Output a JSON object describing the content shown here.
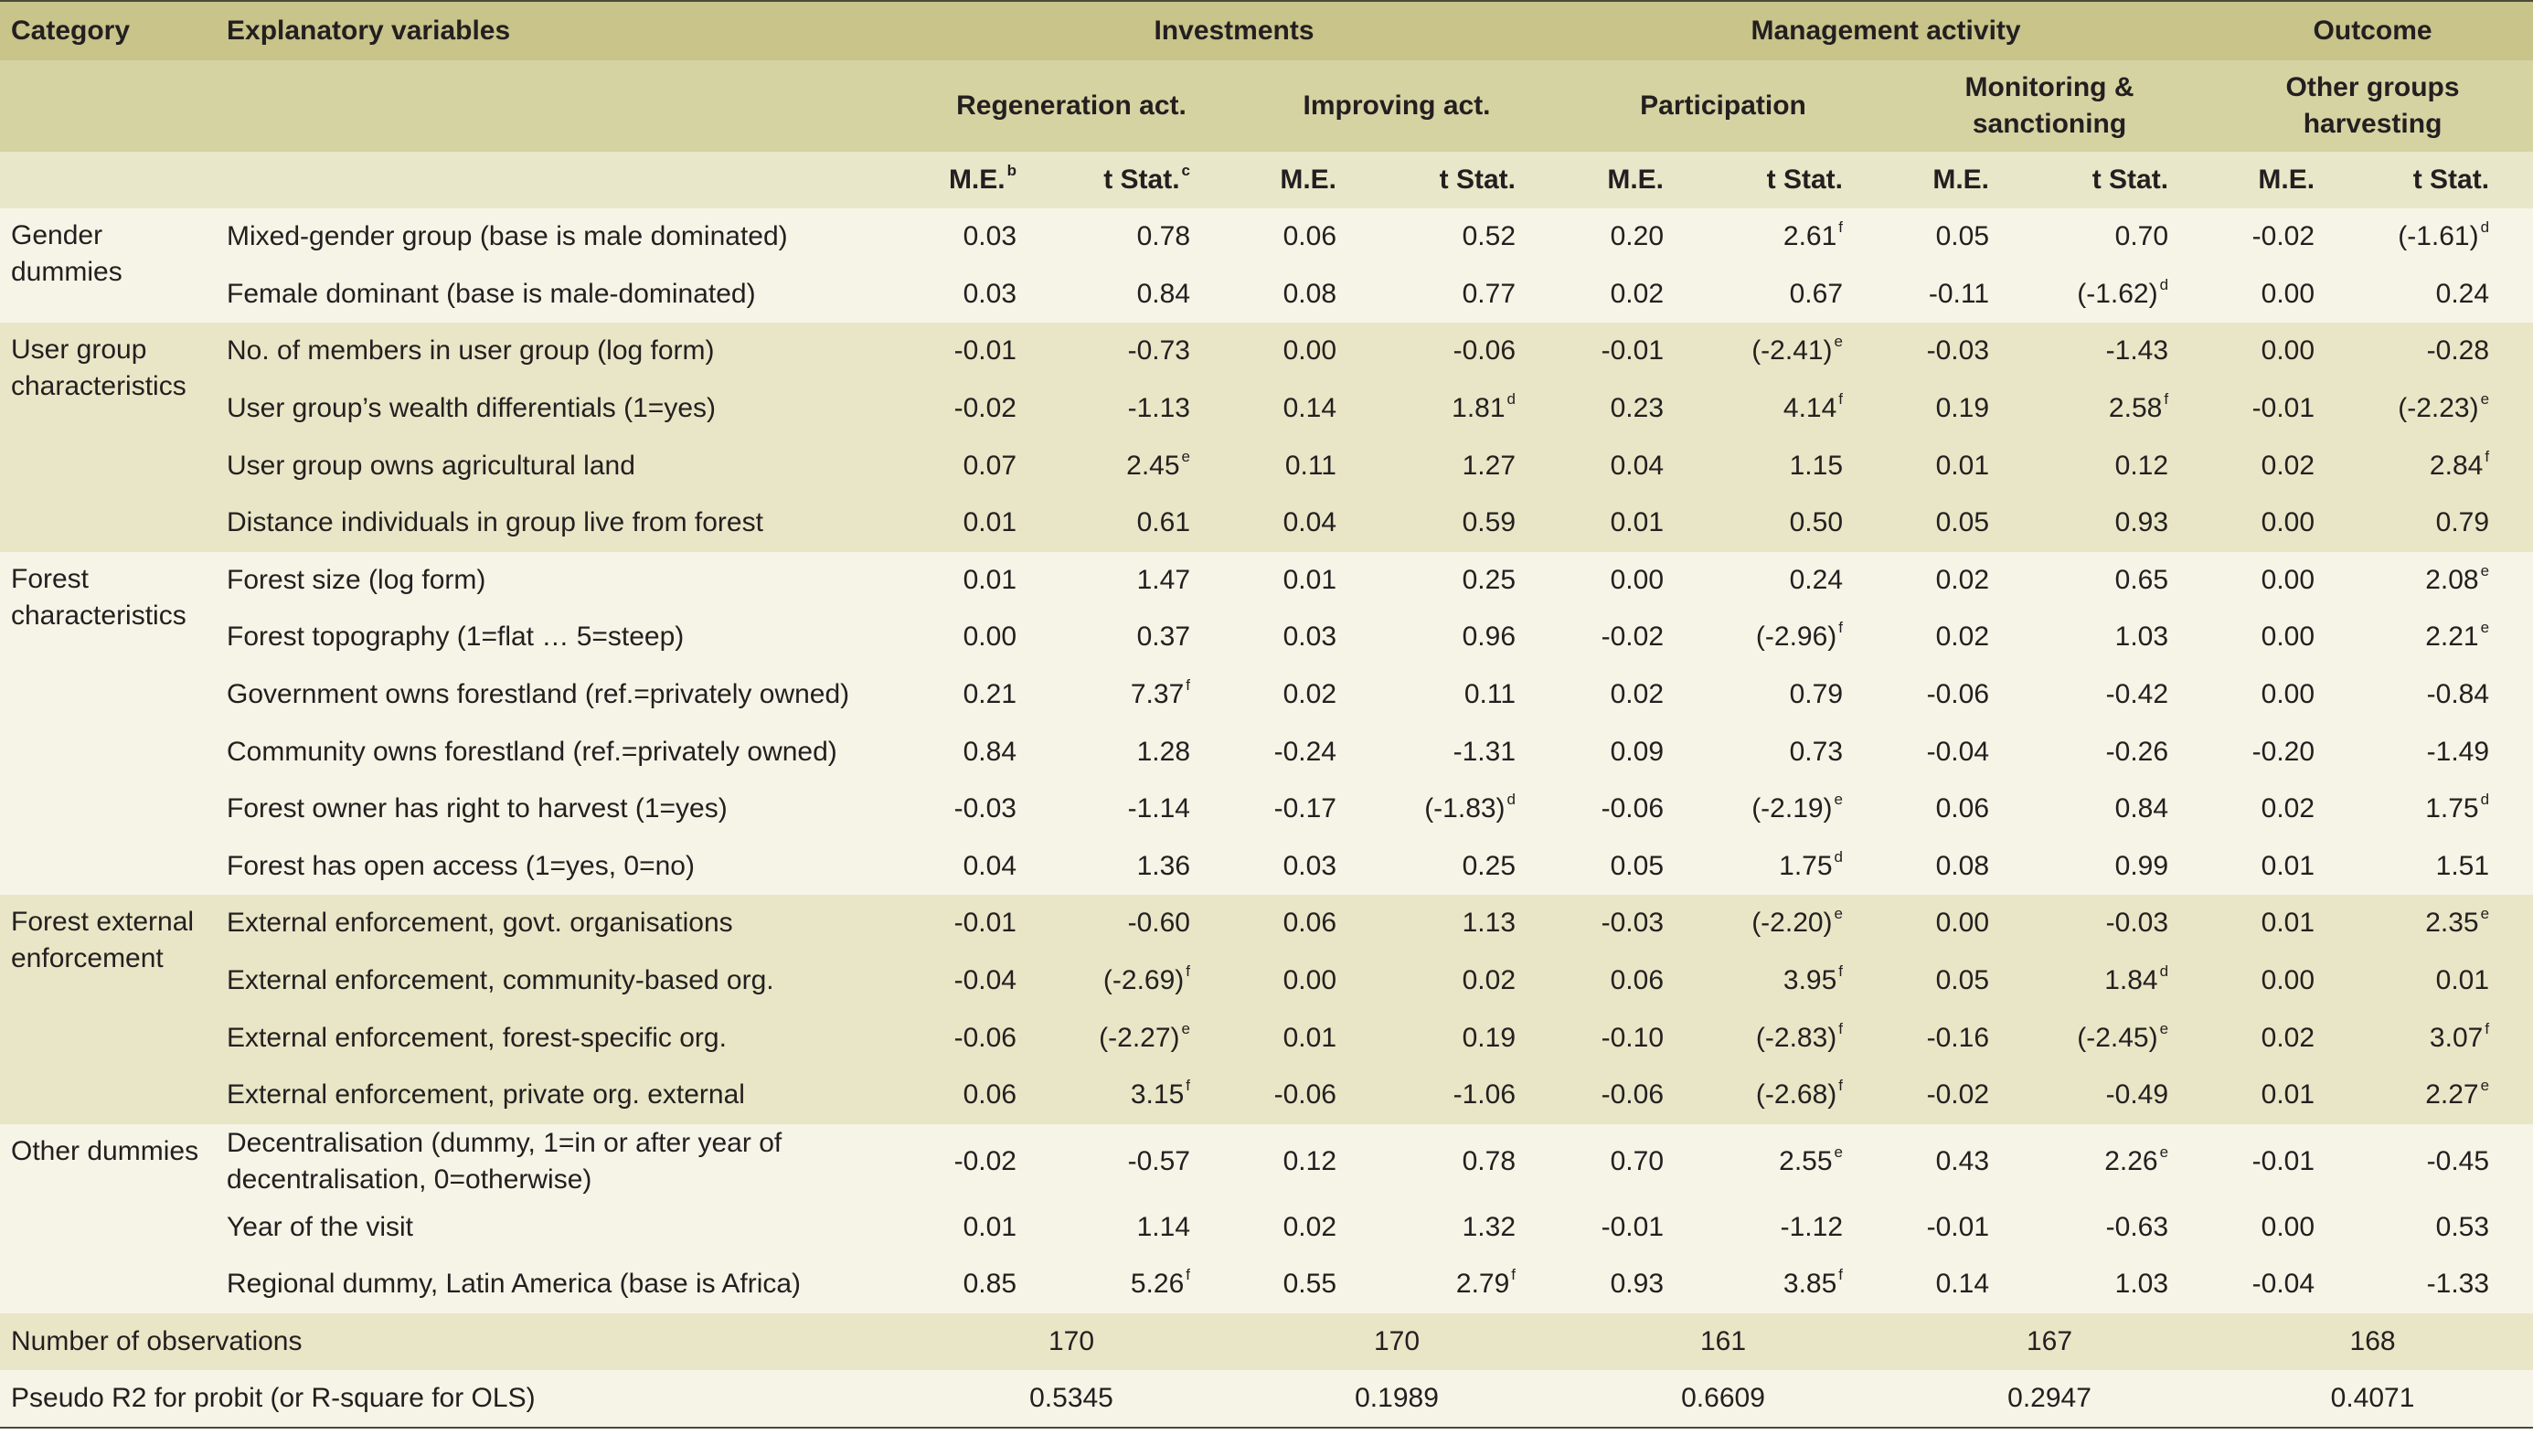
{
  "header": {
    "category": "Category",
    "explanatory": "Explanatory variables",
    "groups": [
      "Investments",
      "Management activity",
      "Outcome"
    ],
    "models": [
      "Regeneration act.",
      "Improving act.",
      "Participation",
      "Monitoring & sanctioning",
      "Other groups harvesting"
    ],
    "me_label": "M.E.",
    "me_sup": "b",
    "t_label": "t Stat.",
    "t_sup": "c",
    "t_label_plain": "t Stat."
  },
  "groups": [
    {
      "category": "Gender dummies",
      "rows": [
        {
          "label": "Mixed-gender group (base is male dominated)",
          "cells": [
            [
              "0.03",
              ""
            ],
            [
              "0.78",
              ""
            ],
            [
              "0.06",
              ""
            ],
            [
              "0.52",
              ""
            ],
            [
              "0.20",
              ""
            ],
            [
              "2.61",
              "f"
            ],
            [
              "0.05",
              ""
            ],
            [
              "0.70",
              ""
            ],
            [
              "-0.02",
              ""
            ],
            [
              "(-1.61)",
              "d"
            ]
          ]
        },
        {
          "label": "Female dominant (base is male-dominated)",
          "cells": [
            [
              "0.03",
              ""
            ],
            [
              "0.84",
              ""
            ],
            [
              "0.08",
              ""
            ],
            [
              "0.77",
              ""
            ],
            [
              "0.02",
              ""
            ],
            [
              "0.67",
              ""
            ],
            [
              "-0.11",
              ""
            ],
            [
              "(-1.62)",
              "d"
            ],
            [
              "0.00",
              ""
            ],
            [
              "0.24",
              ""
            ]
          ]
        }
      ]
    },
    {
      "category": "User group characteristics",
      "rows": [
        {
          "label": "No. of members in user group (log form)",
          "cells": [
            [
              "-0.01",
              ""
            ],
            [
              "-0.73",
              ""
            ],
            [
              "0.00",
              ""
            ],
            [
              "-0.06",
              ""
            ],
            [
              "-0.01",
              ""
            ],
            [
              "(-2.41)",
              "e"
            ],
            [
              "-0.03",
              ""
            ],
            [
              "-1.43",
              ""
            ],
            [
              "0.00",
              ""
            ],
            [
              "-0.28",
              ""
            ]
          ]
        },
        {
          "label": "User group’s wealth differentials (1=yes)",
          "cells": [
            [
              "-0.02",
              ""
            ],
            [
              "-1.13",
              ""
            ],
            [
              "0.14",
              ""
            ],
            [
              "1.81",
              "d"
            ],
            [
              "0.23",
              ""
            ],
            [
              "4.14",
              "f"
            ],
            [
              "0.19",
              ""
            ],
            [
              "2.58",
              "f"
            ],
            [
              "-0.01",
              ""
            ],
            [
              "(-2.23)",
              "e"
            ]
          ]
        },
        {
          "label": "User group owns agricultural land",
          "cells": [
            [
              "0.07",
              ""
            ],
            [
              "2.45",
              "e"
            ],
            [
              "0.11",
              ""
            ],
            [
              "1.27",
              ""
            ],
            [
              "0.04",
              ""
            ],
            [
              "1.15",
              ""
            ],
            [
              "0.01",
              ""
            ],
            [
              "0.12",
              ""
            ],
            [
              "0.02",
              ""
            ],
            [
              "2.84",
              "f"
            ]
          ]
        },
        {
          "label": "Distance individuals in group live from forest",
          "cells": [
            [
              "0.01",
              ""
            ],
            [
              "0.61",
              ""
            ],
            [
              "0.04",
              ""
            ],
            [
              "0.59",
              ""
            ],
            [
              "0.01",
              ""
            ],
            [
              "0.50",
              ""
            ],
            [
              "0.05",
              ""
            ],
            [
              "0.93",
              ""
            ],
            [
              "0.00",
              ""
            ],
            [
              "0.79",
              ""
            ]
          ]
        }
      ]
    },
    {
      "category": "Forest characteristics",
      "rows": [
        {
          "label": "Forest size (log form)",
          "cells": [
            [
              "0.01",
              ""
            ],
            [
              "1.47",
              ""
            ],
            [
              "0.01",
              ""
            ],
            [
              "0.25",
              ""
            ],
            [
              "0.00",
              ""
            ],
            [
              "0.24",
              ""
            ],
            [
              "0.02",
              ""
            ],
            [
              "0.65",
              ""
            ],
            [
              "0.00",
              ""
            ],
            [
              "2.08",
              "e"
            ]
          ]
        },
        {
          "label": "Forest topography (1=flat … 5=steep)",
          "cells": [
            [
              "0.00",
              ""
            ],
            [
              "0.37",
              ""
            ],
            [
              "0.03",
              ""
            ],
            [
              "0.96",
              ""
            ],
            [
              "-0.02",
              ""
            ],
            [
              "(-2.96)",
              "f"
            ],
            [
              "0.02",
              ""
            ],
            [
              "1.03",
              ""
            ],
            [
              "0.00",
              ""
            ],
            [
              "2.21",
              "e"
            ]
          ]
        },
        {
          "label": "Government owns forestland (ref.=privately owned)",
          "cells": [
            [
              "0.21",
              ""
            ],
            [
              "7.37",
              "f"
            ],
            [
              "0.02",
              ""
            ],
            [
              "0.11",
              ""
            ],
            [
              "0.02",
              ""
            ],
            [
              "0.79",
              ""
            ],
            [
              "-0.06",
              ""
            ],
            [
              "-0.42",
              ""
            ],
            [
              "0.00",
              ""
            ],
            [
              "-0.84",
              ""
            ]
          ]
        },
        {
          "label": "Community owns forestland (ref.=privately owned)",
          "cells": [
            [
              "0.84",
              ""
            ],
            [
              "1.28",
              ""
            ],
            [
              "-0.24",
              ""
            ],
            [
              "-1.31",
              ""
            ],
            [
              "0.09",
              ""
            ],
            [
              "0.73",
              ""
            ],
            [
              "-0.04",
              ""
            ],
            [
              "-0.26",
              ""
            ],
            [
              "-0.20",
              ""
            ],
            [
              "-1.49",
              ""
            ]
          ]
        },
        {
          "label": "Forest owner has right to harvest (1=yes)",
          "cells": [
            [
              "-0.03",
              ""
            ],
            [
              "-1.14",
              ""
            ],
            [
              "-0.17",
              ""
            ],
            [
              "(-1.83)",
              "d"
            ],
            [
              "-0.06",
              ""
            ],
            [
              "(-2.19)",
              "e"
            ],
            [
              "0.06",
              ""
            ],
            [
              "0.84",
              ""
            ],
            [
              "0.02",
              ""
            ],
            [
              "1.75",
              "d"
            ]
          ]
        },
        {
          "label": "Forest has open access (1=yes, 0=no)",
          "cells": [
            [
              "0.04",
              ""
            ],
            [
              "1.36",
              ""
            ],
            [
              "0.03",
              ""
            ],
            [
              "0.25",
              ""
            ],
            [
              "0.05",
              ""
            ],
            [
              "1.75",
              "d"
            ],
            [
              "0.08",
              ""
            ],
            [
              "0.99",
              ""
            ],
            [
              "0.01",
              ""
            ],
            [
              "1.51",
              ""
            ]
          ]
        }
      ]
    },
    {
      "category": "Forest external enforcement",
      "rows": [
        {
          "label": "External enforcement, govt. organisations",
          "cells": [
            [
              "-0.01",
              ""
            ],
            [
              "-0.60",
              ""
            ],
            [
              "0.06",
              ""
            ],
            [
              "1.13",
              ""
            ],
            [
              "-0.03",
              ""
            ],
            [
              "(-2.20)",
              "e"
            ],
            [
              "0.00",
              ""
            ],
            [
              "-0.03",
              ""
            ],
            [
              "0.01",
              ""
            ],
            [
              "2.35",
              "e"
            ]
          ]
        },
        {
          "label": "External enforcement, community-based org.",
          "cells": [
            [
              "-0.04",
              ""
            ],
            [
              "(-2.69)",
              "f"
            ],
            [
              "0.00",
              ""
            ],
            [
              "0.02",
              ""
            ],
            [
              "0.06",
              ""
            ],
            [
              "3.95",
              "f"
            ],
            [
              "0.05",
              ""
            ],
            [
              "1.84",
              "d"
            ],
            [
              "0.00",
              ""
            ],
            [
              "0.01",
              ""
            ]
          ]
        },
        {
          "label": "External enforcement, forest-specific org.",
          "cells": [
            [
              "-0.06",
              ""
            ],
            [
              "(-2.27)",
              "e"
            ],
            [
              "0.01",
              ""
            ],
            [
              "0.19",
              ""
            ],
            [
              "-0.10",
              ""
            ],
            [
              "(-2.83)",
              "f"
            ],
            [
              "-0.16",
              ""
            ],
            [
              "(-2.45)",
              "e"
            ],
            [
              "0.02",
              ""
            ],
            [
              "3.07",
              "f"
            ]
          ]
        },
        {
          "label": "External enforcement, private org. external",
          "cells": [
            [
              "0.06",
              ""
            ],
            [
              "3.15",
              "f"
            ],
            [
              "-0.06",
              ""
            ],
            [
              "-1.06",
              ""
            ],
            [
              "-0.06",
              ""
            ],
            [
              "(-2.68)",
              "f"
            ],
            [
              "-0.02",
              ""
            ],
            [
              "-0.49",
              ""
            ],
            [
              "0.01",
              ""
            ],
            [
              "2.27",
              "e"
            ]
          ]
        }
      ]
    },
    {
      "category": "Other dummies",
      "rows": [
        {
          "label": "Decentralisation (dummy, 1=in or after year of decentralisation, 0=otherwise)",
          "cells": [
            [
              "-0.02",
              ""
            ],
            [
              "-0.57",
              ""
            ],
            [
              "0.12",
              ""
            ],
            [
              "0.78",
              ""
            ],
            [
              "0.70",
              ""
            ],
            [
              "2.55",
              "e"
            ],
            [
              "0.43",
              ""
            ],
            [
              "2.26",
              "e"
            ],
            [
              "-0.01",
              ""
            ],
            [
              "-0.45",
              ""
            ]
          ]
        },
        {
          "label": "Year of the visit",
          "cells": [
            [
              "0.01",
              ""
            ],
            [
              "1.14",
              ""
            ],
            [
              "0.02",
              ""
            ],
            [
              "1.32",
              ""
            ],
            [
              "-0.01",
              ""
            ],
            [
              "-1.12",
              ""
            ],
            [
              "-0.01",
              ""
            ],
            [
              "-0.63",
              ""
            ],
            [
              "0.00",
              ""
            ],
            [
              "0.53",
              ""
            ]
          ]
        },
        {
          "label": "Regional dummy, Latin America (base is Africa)",
          "cells": [
            [
              "0.85",
              ""
            ],
            [
              "5.26",
              "f"
            ],
            [
              "0.55",
              ""
            ],
            [
              "2.79",
              "f"
            ],
            [
              "0.93",
              ""
            ],
            [
              "3.85",
              "f"
            ],
            [
              "0.14",
              ""
            ],
            [
              "1.03",
              ""
            ],
            [
              "-0.04",
              ""
            ],
            [
              "-1.33",
              ""
            ]
          ]
        }
      ]
    }
  ],
  "footer": {
    "obs_label": "Number of observations",
    "obs": [
      "170",
      "170",
      "161",
      "167",
      "168"
    ],
    "r2_label": "Pseudo R2 for probit (or R-square for OLS)",
    "r2": [
      "0.5345",
      "0.1989",
      "0.6609",
      "0.2947",
      "0.4071"
    ]
  },
  "colors": {
    "header_dark": "#c8c48a",
    "header_mid": "#d6d3a3",
    "header_light": "#e9e7c9",
    "band_light": "#f5f4e6",
    "band_dark": "#e8e6c6"
  }
}
